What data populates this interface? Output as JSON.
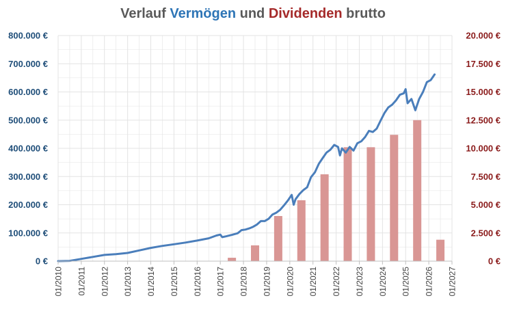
{
  "chart_data": {
    "type": "line+bar",
    "title": {
      "parts": [
        {
          "text": "Verlauf ",
          "color": "#595959"
        },
        {
          "text": "Vermögen",
          "color": "#2e75b6"
        },
        {
          "text": " und ",
          "color": "#595959"
        },
        {
          "text": "Dividenden",
          "color": "#a52a2a"
        },
        {
          "text": " brutto",
          "color": "#595959"
        }
      ]
    },
    "colors": {
      "line": "#4a7ebb",
      "bars": "#d99694",
      "left_axis_text": "#1f4e79",
      "right_axis_text": "#8b1c1c",
      "grid": "#e3e3e3"
    },
    "x_axis": {
      "range": [
        "01/2010",
        "01/2027"
      ],
      "tick_labels": [
        "01/2010",
        "01/2011",
        "01/2012",
        "01/2013",
        "01/2014",
        "01/2015",
        "01/2016",
        "01/2017",
        "01/2018",
        "01/2019",
        "01/2020",
        "01/2021",
        "01/2022",
        "01/2023",
        "01/2024",
        "01/2025",
        "01/2026",
        "01/2027"
      ]
    },
    "y_left": {
      "range": [
        0,
        800000
      ],
      "tick_labels": [
        "0 €",
        "100.000 €",
        "200.000 €",
        "300.000 €",
        "400.000 €",
        "500.000 €",
        "600.000 €",
        "700.000 €",
        "800.000 €"
      ]
    },
    "y_right": {
      "range": [
        0,
        20000
      ],
      "tick_labels": [
        "0 €",
        "2.500 €",
        "5.000 €",
        "7.500 €",
        "10.000 €",
        "12.500 €",
        "15.000 €",
        "17.500 €",
        "20.000 €"
      ]
    },
    "grid": true,
    "series": [
      {
        "kind": "line",
        "axis": "left",
        "points": [
          [
            "01/2010",
            0
          ],
          [
            "07/2010",
            1000
          ],
          [
            "01/2011",
            8000
          ],
          [
            "07/2011",
            15000
          ],
          [
            "01/2012",
            22000
          ],
          [
            "07/2012",
            25000
          ],
          [
            "01/2013",
            29000
          ],
          [
            "07/2013",
            38000
          ],
          [
            "01/2014",
            47000
          ],
          [
            "07/2014",
            54000
          ],
          [
            "01/2015",
            60000
          ],
          [
            "07/2015",
            66000
          ],
          [
            "01/2016",
            73000
          ],
          [
            "07/2016",
            81000
          ],
          [
            "11/2016",
            91000
          ],
          [
            "01/2017",
            94000
          ],
          [
            "02/2017",
            85000
          ],
          [
            "04/2017",
            88000
          ],
          [
            "07/2017",
            93000
          ],
          [
            "10/2017",
            99000
          ],
          [
            "12/2017",
            110000
          ],
          [
            "02/2018",
            112000
          ],
          [
            "04/2018",
            116000
          ],
          [
            "06/2018",
            122000
          ],
          [
            "08/2018",
            130000
          ],
          [
            "10/2018",
            142000
          ],
          [
            "12/2018",
            142000
          ],
          [
            "02/2019",
            150000
          ],
          [
            "04/2019",
            165000
          ],
          [
            "06/2019",
            172000
          ],
          [
            "08/2019",
            182000
          ],
          [
            "10/2019",
            198000
          ],
          [
            "12/2019",
            215000
          ],
          [
            "02/2020",
            235000
          ],
          [
            "03/2020",
            200000
          ],
          [
            "04/2020",
            220000
          ],
          [
            "06/2020",
            238000
          ],
          [
            "08/2020",
            252000
          ],
          [
            "10/2020",
            262000
          ],
          [
            "12/2020",
            298000
          ],
          [
            "02/2021",
            315000
          ],
          [
            "04/2021",
            345000
          ],
          [
            "06/2021",
            365000
          ],
          [
            "08/2021",
            385000
          ],
          [
            "10/2021",
            395000
          ],
          [
            "12/2021",
            412000
          ],
          [
            "02/2022",
            405000
          ],
          [
            "03/2022",
            375000
          ],
          [
            "04/2022",
            400000
          ],
          [
            "06/2022",
            385000
          ],
          [
            "08/2022",
            405000
          ],
          [
            "10/2022",
            392000
          ],
          [
            "12/2022",
            418000
          ],
          [
            "02/2023",
            425000
          ],
          [
            "04/2023",
            440000
          ],
          [
            "06/2023",
            462000
          ],
          [
            "08/2023",
            458000
          ],
          [
            "10/2023",
            470000
          ],
          [
            "12/2023",
            498000
          ],
          [
            "02/2024",
            525000
          ],
          [
            "04/2024",
            545000
          ],
          [
            "06/2024",
            555000
          ],
          [
            "08/2024",
            570000
          ],
          [
            "10/2024",
            590000
          ],
          [
            "12/2024",
            595000
          ],
          [
            "01/2025",
            610000
          ],
          [
            "02/2025",
            560000
          ],
          [
            "04/2025",
            575000
          ],
          [
            "06/2025",
            535000
          ],
          [
            "08/2025",
            575000
          ],
          [
            "10/2025",
            600000
          ],
          [
            "12/2025",
            635000
          ],
          [
            "02/2026",
            642000
          ],
          [
            "04/2026",
            662000
          ]
        ]
      },
      {
        "kind": "bar",
        "axis": "right",
        "points": [
          [
            "07/2017",
            300
          ],
          [
            "07/2018",
            1400
          ],
          [
            "07/2019",
            4000
          ],
          [
            "07/2020",
            5400
          ],
          [
            "07/2021",
            7700
          ],
          [
            "07/2022",
            10100
          ],
          [
            "07/2023",
            10100
          ],
          [
            "07/2024",
            11200
          ],
          [
            "07/2025",
            12500
          ],
          [
            "07/2026",
            1900
          ]
        ]
      }
    ]
  }
}
